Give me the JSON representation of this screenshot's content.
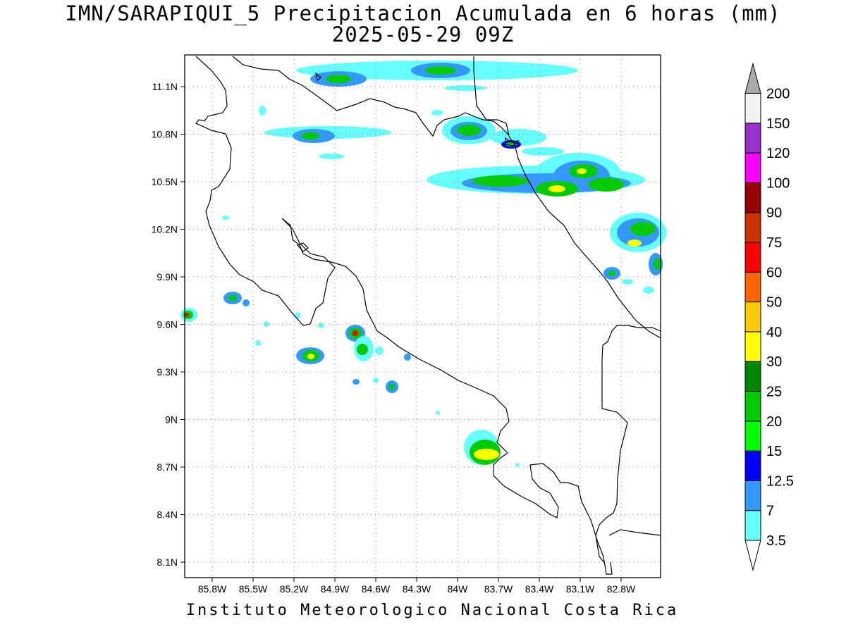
{
  "title": {
    "line1": "IMN/SARAPIQUI_5 Precipitacion Acumulada en 6 horas (mm)",
    "line2": "2025-05-29 09Z"
  },
  "footer": "Instituto Meteorologico Nacional Costa Rica",
  "map": {
    "lon_labels": [
      "85.8W",
      "85.5W",
      "85.2W",
      "84.9W",
      "84.6W",
      "84.3W",
      "84W",
      "83.7W",
      "83.4W",
      "83.1W",
      "82.8W"
    ],
    "lat_labels": [
      "11.1N",
      "10.8N",
      "10.5N",
      "10.2N",
      "9.9N",
      "9.6N",
      "9.3N",
      "9N",
      "8.7N",
      "8.4N",
      "8.1N"
    ]
  },
  "colorbar": {
    "labels": [
      "3.5",
      "7",
      "12.5",
      "15",
      "20",
      "25",
      "30",
      "40",
      "50",
      "60",
      "75",
      "90",
      "100",
      "120",
      "150",
      "200"
    ],
    "colors": [
      "#66ffff",
      "#3399ff",
      "#0000ff",
      "#00ff00",
      "#00cc00",
      "#008800",
      "#ffff00",
      "#ffcc00",
      "#ff6600",
      "#ff0000",
      "#cc3300",
      "#990000",
      "#ff00ff",
      "#9933cc",
      "#f2f2f2"
    ],
    "arrow_low_color": "#ffffff",
    "arrow_high_color": "#aaaaaa"
  }
}
